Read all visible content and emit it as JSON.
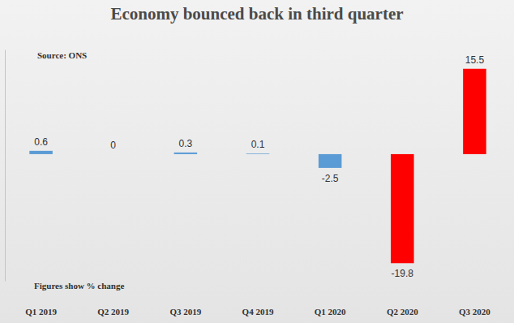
{
  "chart_data": {
    "type": "bar",
    "title": "Economy bounced back in third quarter",
    "annotations": [
      "Source: ONS",
      "Figures show % change"
    ],
    "categories": [
      "Q1 2019",
      "Q2 2019",
      "Q3 2019",
      "Q4 2019",
      "Q1 2020",
      "Q2 2020",
      "Q3 2020"
    ],
    "values": [
      0.6,
      0,
      0.3,
      0.1,
      -2.5,
      -19.8,
      15.5
    ],
    "colors": [
      "#5b9bd5",
      "#5b9bd5",
      "#5b9bd5",
      "#5b9bd5",
      "#5b9bd5",
      "#ff0000",
      "#ff0000"
    ],
    "ylim": [
      -23,
      19
    ],
    "grid": false,
    "data_labels": true,
    "tick_labels": "x"
  }
}
